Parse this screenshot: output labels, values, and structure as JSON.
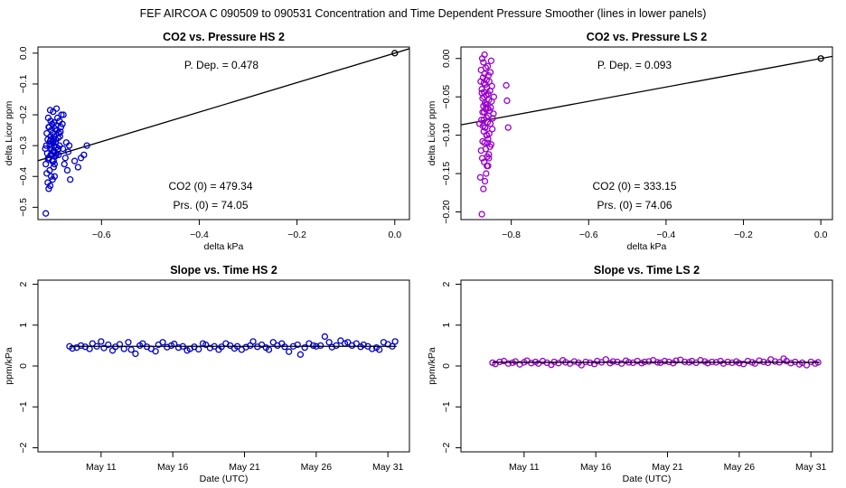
{
  "page_title": "FEF   AIRCOA C   090509 to 090531   Concentration and Time Dependent Pressure Smoother (lines in lower panels)",
  "colors": {
    "hs": "#0000cc",
    "ls": "#9900cc",
    "line": "#000000"
  },
  "chart_data": [
    {
      "id": "hs-pressure",
      "type": "scatter",
      "title": "CO2 vs. Pressure HS 2",
      "xlabel": "delta kPa",
      "ylabel": "delta Licor ppm",
      "xlim": [
        -0.73,
        0.03
      ],
      "ylim": [
        -0.54,
        0.02
      ],
      "x_ticks": [
        -0.6,
        -0.4,
        -0.2,
        0.0
      ],
      "x_tick_labels": [
        "−0.6",
        "−0.4",
        "−0.2",
        "0.0"
      ],
      "y_ticks": [
        0.0,
        -0.1,
        -0.2,
        -0.3,
        -0.4,
        -0.5
      ],
      "y_tick_labels": [
        "0.0",
        "−0.1",
        "−0.2",
        "−0.3",
        "−0.4",
        "−0.5"
      ],
      "fit_line": {
        "intercept": 0.0,
        "slope": 0.478,
        "x_range": [
          -0.73,
          0.03
        ]
      },
      "reference_point": [
        0.0,
        0.0
      ],
      "annotations": {
        "p_dep": "P. Dep. =  0.478",
        "co2_0": "CO2 (0) =  479.34",
        "prs_0": "Prs. (0) = 74.05"
      },
      "x": [
        -0.714,
        -0.708,
        -0.705,
        -0.71,
        -0.7,
        -0.703,
        -0.712,
        -0.706,
        -0.698,
        -0.696,
        -0.701,
        -0.709,
        -0.707,
        -0.695,
        -0.693,
        -0.704,
        -0.711,
        -0.699,
        -0.697,
        -0.69,
        -0.702,
        -0.688,
        -0.692,
        -0.686,
        -0.713,
        -0.706,
        -0.7,
        -0.694,
        -0.705,
        -0.698,
        -0.71,
        -0.689,
        -0.704,
        -0.696,
        -0.7,
        -0.687,
        -0.684,
        -0.691,
        -0.703,
        -0.695,
        -0.708,
        -0.683,
        -0.693,
        -0.701,
        -0.68,
        -0.697,
        -0.704,
        -0.686,
        -0.69,
        -0.709,
        -0.678,
        -0.682,
        -0.699,
        -0.705,
        -0.692,
        -0.676,
        -0.674,
        -0.688,
        -0.702,
        -0.694,
        -0.712,
        -0.707,
        -0.679,
        -0.672,
        -0.685,
        -0.698,
        -0.67,
        -0.668,
        -0.696,
        -0.666,
        -0.664,
        -0.655,
        -0.648,
        -0.642,
        -0.636,
        -0.63,
        -0.715,
        -0.703,
        -0.709,
        -0.697,
        -0.714,
        -0.702
      ],
      "y": [
        -0.52,
        -0.44,
        -0.43,
        -0.42,
        -0.41,
        -0.4,
        -0.39,
        -0.38,
        -0.37,
        -0.36,
        -0.35,
        -0.345,
        -0.34,
        -0.335,
        -0.33,
        -0.33,
        -0.325,
        -0.32,
        -0.32,
        -0.315,
        -0.31,
        -0.31,
        -0.305,
        -0.3,
        -0.3,
        -0.295,
        -0.29,
        -0.29,
        -0.285,
        -0.28,
        -0.28,
        -0.275,
        -0.27,
        -0.27,
        -0.26,
        -0.26,
        -0.255,
        -0.25,
        -0.25,
        -0.245,
        -0.24,
        -0.24,
        -0.235,
        -0.23,
        -0.23,
        -0.225,
        -0.22,
        -0.22,
        -0.21,
        -0.21,
        -0.2,
        -0.2,
        -0.19,
        -0.185,
        -0.18,
        -0.36,
        -0.34,
        -0.33,
        -0.3,
        -0.28,
        -0.26,
        -0.24,
        -0.31,
        -0.29,
        -0.27,
        -0.35,
        -0.38,
        -0.32,
        -0.4,
        -0.3,
        -0.41,
        -0.35,
        -0.37,
        -0.34,
        -0.33,
        -0.3,
        -0.31,
        -0.28,
        -0.34,
        -0.3,
        -0.36,
        -0.33
      ]
    },
    {
      "id": "ls-pressure",
      "type": "scatter",
      "title": "CO2 vs. Pressure LS 2",
      "xlabel": "delta kPa",
      "ylabel": "delta Licor ppm",
      "xlim": [
        -0.93,
        0.03
      ],
      "ylim": [
        -0.21,
        0.015
      ],
      "x_ticks": [
        -0.8,
        -0.6,
        -0.4,
        -0.2,
        0.0
      ],
      "x_tick_labels": [
        "−0.8",
        "−0.6",
        "−0.4",
        "−0.2",
        "0.0"
      ],
      "y_ticks": [
        0.0,
        -0.05,
        -0.1,
        -0.15,
        -0.2
      ],
      "y_tick_labels": [
        "0.00",
        "−0.05",
        "−0.10",
        "−0.15",
        "−0.20"
      ],
      "fit_line": {
        "intercept": 0.0,
        "slope": 0.093,
        "x_range": [
          -0.93,
          0.03
        ]
      },
      "reference_point": [
        0.0,
        0.0
      ],
      "annotations": {
        "p_dep": "P. Dep. =  0.093",
        "co2_0": "CO2 (0) =  333.15",
        "prs_0": "Prs. (0) = 74.06"
      },
      "x": [
        -0.876,
        -0.872,
        -0.868,
        -0.88,
        -0.865,
        -0.86,
        -0.87,
        -0.875,
        -0.862,
        -0.858,
        -0.878,
        -0.866,
        -0.855,
        -0.852,
        -0.869,
        -0.874,
        -0.86,
        -0.863,
        -0.857,
        -0.871,
        -0.849,
        -0.867,
        -0.873,
        -0.854,
        -0.861,
        -0.877,
        -0.848,
        -0.864,
        -0.859,
        -0.846,
        -0.87,
        -0.856,
        -0.866,
        -0.853,
        -0.872,
        -0.862,
        -0.868,
        -0.851,
        -0.858,
        -0.874,
        -0.845,
        -0.865,
        -0.86,
        -0.87,
        -0.855,
        -0.876,
        -0.863,
        -0.85,
        -0.867,
        -0.871,
        -0.857,
        -0.864,
        -0.873,
        -0.859,
        -0.869,
        -0.854,
        -0.878,
        -0.866,
        -0.861,
        -0.872,
        -0.852,
        -0.875,
        -0.869,
        -0.863,
        -0.858,
        -0.864,
        -0.871,
        -0.868,
        -0.874,
        -0.861,
        -0.866,
        -0.87,
        -0.876,
        -0.86,
        -0.813,
        -0.811,
        -0.808,
        -0.882,
        -0.879
      ],
      "y": [
        -0.203,
        -0.17,
        -0.16,
        -0.155,
        -0.15,
        -0.14,
        -0.135,
        -0.13,
        -0.128,
        -0.125,
        -0.12,
        -0.118,
        -0.115,
        -0.112,
        -0.11,
        -0.108,
        -0.105,
        -0.1,
        -0.098,
        -0.095,
        -0.092,
        -0.09,
        -0.088,
        -0.085,
        -0.083,
        -0.08,
        -0.078,
        -0.077,
        -0.075,
        -0.072,
        -0.07,
        -0.068,
        -0.066,
        -0.064,
        -0.062,
        -0.06,
        -0.058,
        -0.056,
        -0.054,
        -0.052,
        -0.05,
        -0.048,
        -0.046,
        -0.044,
        -0.042,
        -0.04,
        -0.038,
        -0.036,
        -0.034,
        -0.032,
        -0.03,
        -0.028,
        -0.025,
        -0.022,
        -0.02,
        -0.018,
        -0.015,
        -0.012,
        -0.01,
        -0.005,
        -0.003,
        0.0,
        0.005,
        -0.14,
        -0.13,
        -0.1,
        -0.08,
        -0.09,
        -0.07,
        -0.11,
        -0.06,
        -0.05,
        -0.045,
        -0.065,
        -0.035,
        -0.055,
        -0.09,
        -0.085,
        -0.03
      ]
    },
    {
      "id": "hs-slope",
      "type": "line",
      "title": "Slope vs. Time HS 2",
      "xlabel": "Date (UTC)",
      "ylabel": "ppm/kPa",
      "xlim": [
        6.6,
        32.5
      ],
      "ylim": [
        -2.1,
        2.1
      ],
      "x_ticks": [
        11,
        16,
        21,
        26,
        31
      ],
      "x_tick_labels": [
        "May 11",
        "May 16",
        "May 21",
        "May 26",
        "May 31"
      ],
      "y_ticks": [
        -2,
        -1,
        0,
        1,
        2
      ],
      "y_tick_labels": [
        "−2",
        "−1",
        "0",
        "1",
        "2"
      ],
      "x": [
        8.8,
        9.0,
        9.3,
        9.6,
        9.9,
        10.2,
        10.4,
        10.7,
        11.0,
        11.2,
        11.5,
        11.8,
        12.0,
        12.3,
        12.6,
        12.9,
        13.1,
        13.4,
        13.7,
        13.9,
        14.2,
        14.5,
        14.8,
        15.0,
        15.3,
        15.6,
        15.9,
        16.1,
        16.4,
        16.7,
        17.0,
        17.2,
        17.5,
        17.8,
        18.1,
        18.3,
        18.6,
        18.9,
        19.2,
        19.4,
        19.7,
        20.0,
        20.3,
        20.5,
        20.8,
        21.1,
        21.4,
        21.6,
        21.9,
        22.2,
        22.5,
        22.7,
        23.0,
        23.3,
        23.6,
        23.8,
        24.1,
        24.4,
        24.7,
        24.9,
        25.2,
        25.5,
        25.8,
        26.0,
        26.3,
        26.6,
        26.9,
        27.1,
        27.4,
        27.7,
        28.0,
        28.2,
        28.5,
        28.8,
        29.1,
        29.3,
        29.6,
        29.9,
        30.2,
        30.4,
        30.7,
        31.0,
        31.3,
        31.5
      ],
      "y": [
        0.48,
        0.43,
        0.45,
        0.5,
        0.47,
        0.42,
        0.55,
        0.48,
        0.6,
        0.44,
        0.52,
        0.38,
        0.47,
        0.53,
        0.42,
        0.58,
        0.4,
        0.3,
        0.5,
        0.55,
        0.47,
        0.42,
        0.36,
        0.52,
        0.58,
        0.46,
        0.5,
        0.54,
        0.45,
        0.48,
        0.38,
        0.42,
        0.47,
        0.41,
        0.55,
        0.52,
        0.44,
        0.48,
        0.4,
        0.47,
        0.55,
        0.5,
        0.43,
        0.48,
        0.4,
        0.46,
        0.5,
        0.6,
        0.47,
        0.52,
        0.45,
        0.4,
        0.58,
        0.5,
        0.55,
        0.47,
        0.35,
        0.48,
        0.52,
        0.28,
        0.45,
        0.55,
        0.5,
        0.48,
        0.5,
        0.72,
        0.58,
        0.46,
        0.5,
        0.62,
        0.55,
        0.58,
        0.5,
        0.55,
        0.47,
        0.52,
        0.48,
        0.42,
        0.45,
        0.4,
        0.58,
        0.53,
        0.48,
        0.6
      ],
      "smoother": {
        "x": [
          8.8,
          31.6
        ],
        "y": [
          0.48,
          0.48
        ]
      }
    },
    {
      "id": "ls-slope",
      "type": "line",
      "title": "Slope vs. Time LS 2",
      "xlabel": "Date (UTC)",
      "ylabel": "ppm/kPa",
      "xlim": [
        6.6,
        32.5
      ],
      "ylim": [
        -2.1,
        2.1
      ],
      "x_ticks": [
        11,
        16,
        21,
        26,
        31
      ],
      "x_tick_labels": [
        "May 11",
        "May 16",
        "May 21",
        "May 26",
        "May 31"
      ],
      "y_ticks": [
        -2,
        -1,
        0,
        1,
        2
      ],
      "y_tick_labels": [
        "−2",
        "−1",
        "0",
        "1",
        "2"
      ],
      "x": [
        8.8,
        9.0,
        9.3,
        9.6,
        9.9,
        10.2,
        10.4,
        10.7,
        11.0,
        11.2,
        11.5,
        11.8,
        12.0,
        12.3,
        12.6,
        12.9,
        13.1,
        13.4,
        13.7,
        13.9,
        14.2,
        14.5,
        14.8,
        15.0,
        15.3,
        15.6,
        15.9,
        16.1,
        16.4,
        16.7,
        17.0,
        17.2,
        17.5,
        17.8,
        18.1,
        18.3,
        18.6,
        18.9,
        19.2,
        19.4,
        19.7,
        20.0,
        20.3,
        20.5,
        20.8,
        21.1,
        21.4,
        21.6,
        21.9,
        22.2,
        22.5,
        22.7,
        23.0,
        23.3,
        23.6,
        23.8,
        24.1,
        24.4,
        24.7,
        24.9,
        25.2,
        25.5,
        25.8,
        26.0,
        26.3,
        26.6,
        26.9,
        27.1,
        27.4,
        27.7,
        28.0,
        28.2,
        28.5,
        28.8,
        29.1,
        29.3,
        29.6,
        29.9,
        30.2,
        30.4,
        30.7,
        31.0,
        31.3,
        31.5
      ],
      "y": [
        0.08,
        0.05,
        0.1,
        0.12,
        0.06,
        0.08,
        0.11,
        0.04,
        0.09,
        0.13,
        0.07,
        0.1,
        0.06,
        0.12,
        0.08,
        0.03,
        0.1,
        0.07,
        0.14,
        0.09,
        0.06,
        0.11,
        0.08,
        0.02,
        0.1,
        0.08,
        0.05,
        0.12,
        0.09,
        0.16,
        0.07,
        0.11,
        0.1,
        0.06,
        0.13,
        0.09,
        0.08,
        0.12,
        0.07,
        0.1,
        0.11,
        0.14,
        0.09,
        0.08,
        0.12,
        0.1,
        0.07,
        0.13,
        0.15,
        0.1,
        0.09,
        0.12,
        0.08,
        0.14,
        0.11,
        0.07,
        0.1,
        0.09,
        0.12,
        0.06,
        0.1,
        0.08,
        0.11,
        0.07,
        0.05,
        0.12,
        0.09,
        0.06,
        0.13,
        0.1,
        0.08,
        0.16,
        0.11,
        0.09,
        0.18,
        0.12,
        0.07,
        0.1,
        0.04,
        0.08,
        0.02,
        0.1,
        0.06,
        0.09
      ],
      "smoother": {
        "x": [
          8.8,
          31.6
        ],
        "y": [
          0.09,
          0.09
        ]
      }
    }
  ]
}
